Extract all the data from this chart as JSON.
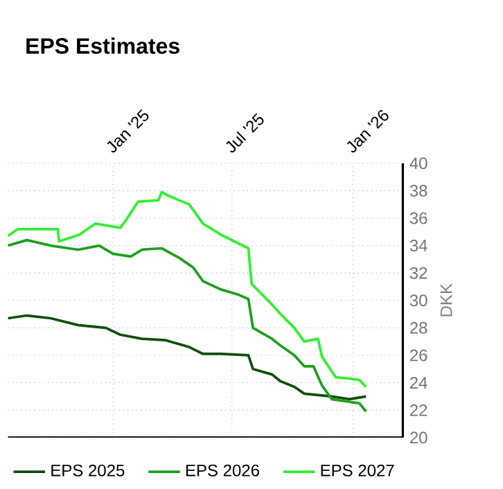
{
  "chart_data": {
    "type": "line",
    "title": "EPS Estimates",
    "ylabel": "DKK",
    "xlim": [
      "2024-07-25",
      "2026-03-18"
    ],
    "xticks": [
      {
        "value": "2025-01-01",
        "label": "Jan '25"
      },
      {
        "value": "2025-07-01",
        "label": "Jul '25"
      },
      {
        "value": "2026-01-01",
        "label": "Jan '26"
      }
    ],
    "ylim": [
      20,
      40
    ],
    "yticks": [
      20,
      22,
      24,
      26,
      28,
      30,
      32,
      34,
      36,
      38,
      40
    ],
    "grid": true,
    "legend": "bottom",
    "marker": "none",
    "line_style": "solid",
    "series": [
      {
        "name": "EPS 2025",
        "color": "#0f4f0f",
        "x": [
          "2024-07-25",
          "2024-08-23",
          "2024-09-28",
          "2024-11-09",
          "2024-12-21",
          "2025-01-12",
          "2025-02-14",
          "2025-03-22",
          "2025-04-27",
          "2025-05-18",
          "2025-06-14",
          "2025-07-26",
          "2025-08-02",
          "2025-08-31",
          "2025-09-13",
          "2025-10-04",
          "2025-10-19",
          "2025-11-30",
          "2025-12-27",
          "2026-01-21"
        ],
        "values": [
          28.7,
          28.9,
          28.7,
          28.2,
          28.0,
          27.5,
          27.2,
          27.1,
          26.6,
          26.1,
          26.1,
          26.0,
          25.0,
          24.6,
          24.1,
          23.7,
          23.2,
          23.0,
          22.8,
          23.0
        ]
      },
      {
        "name": "EPS 2026",
        "color": "#1e9e1e",
        "x": [
          "2024-07-25",
          "2024-08-23",
          "2024-09-28",
          "2024-11-09",
          "2024-12-11",
          "2025-01-01",
          "2025-01-28",
          "2025-02-14",
          "2025-03-16",
          "2025-04-12",
          "2025-05-03",
          "2025-05-18",
          "2025-06-14",
          "2025-07-12",
          "2025-07-26",
          "2025-08-02",
          "2025-08-31",
          "2025-09-13",
          "2025-10-04",
          "2025-10-19",
          "2025-11-02",
          "2025-11-15",
          "2025-11-30",
          "2025-12-27",
          "2026-01-11",
          "2026-01-21"
        ],
        "values": [
          34.0,
          34.4,
          34.0,
          33.7,
          34.0,
          33.4,
          33.2,
          33.7,
          33.8,
          33.1,
          32.4,
          31.4,
          30.8,
          30.4,
          30.1,
          28.0,
          27.2,
          26.7,
          26.0,
          25.2,
          25.2,
          23.8,
          22.8,
          22.6,
          22.5,
          21.9
        ]
      },
      {
        "name": "EPS 2027",
        "color": "#33ee33",
        "x": [
          "2024-07-25",
          "2024-08-09",
          "2024-10-09",
          "2024-10-11",
          "2024-11-11",
          "2024-12-05",
          "2025-01-12",
          "2025-01-20",
          "2025-02-08",
          "2025-03-11",
          "2025-03-16",
          "2025-03-28",
          "2025-04-27",
          "2025-05-18",
          "2025-06-14",
          "2025-07-26",
          "2025-07-31",
          "2025-08-31",
          "2025-09-13",
          "2025-10-04",
          "2025-10-19",
          "2025-11-09",
          "2025-11-15",
          "2025-12-06",
          "2025-12-27",
          "2026-01-11",
          "2026-01-21"
        ],
        "values": [
          34.7,
          35.2,
          35.2,
          34.3,
          34.8,
          35.6,
          35.3,
          35.8,
          37.2,
          37.3,
          37.9,
          37.6,
          37.0,
          35.6,
          34.8,
          33.8,
          31.2,
          29.7,
          29.0,
          28.0,
          27.0,
          27.2,
          25.9,
          24.4,
          24.3,
          24.2,
          23.7
        ]
      }
    ]
  }
}
